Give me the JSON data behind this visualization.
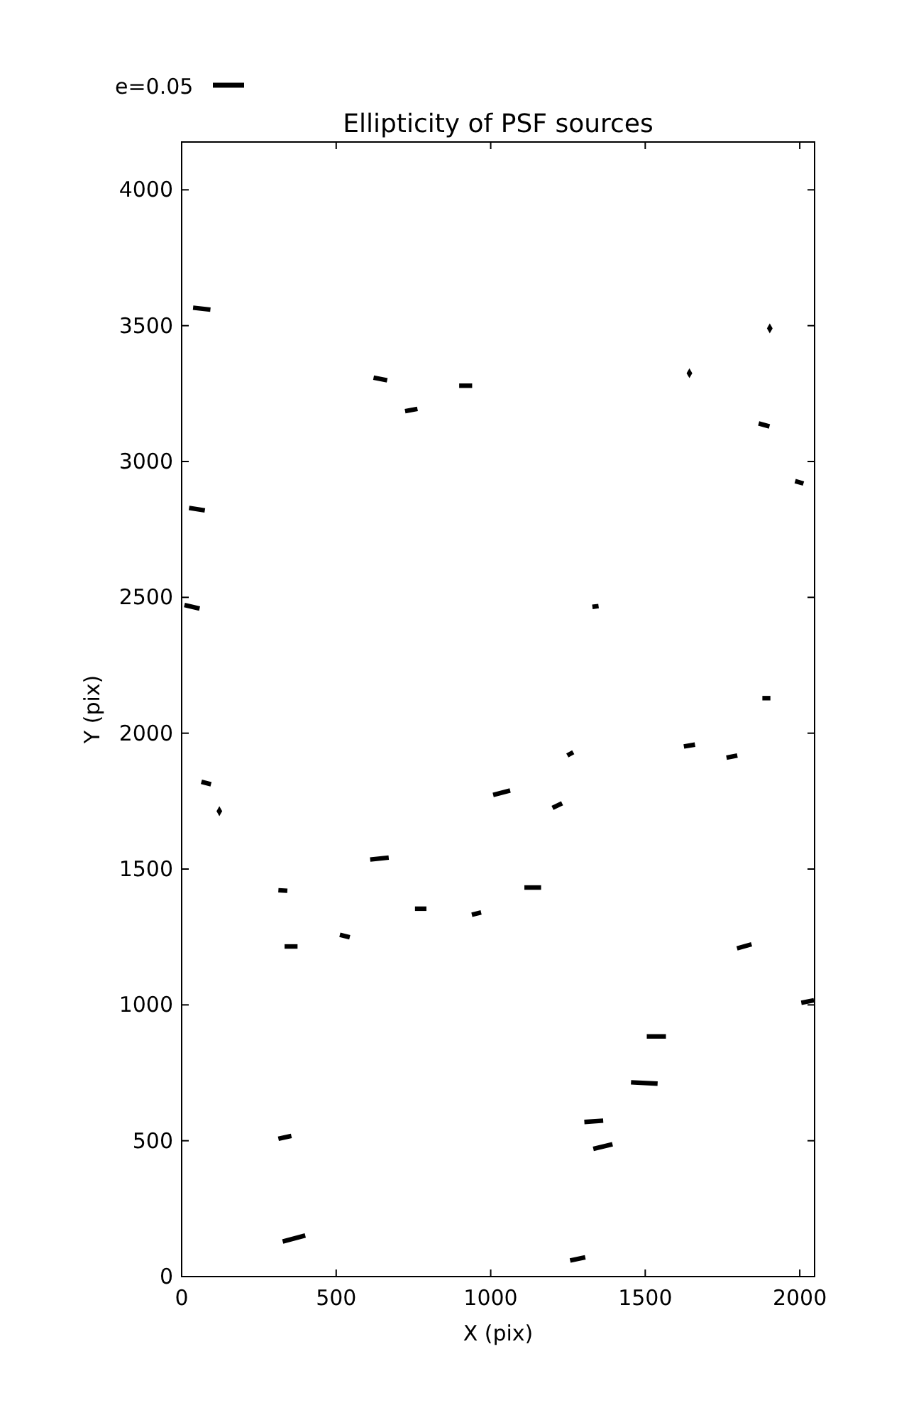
{
  "chart_data": {
    "type": "line",
    "title": "Ellipticity of PSF sources",
    "xlabel": "X (pix)",
    "ylabel": "Y (pix)",
    "xlim": [
      0,
      2048
    ],
    "ylim": [
      0,
      4176
    ],
    "xticks": [
      0,
      500,
      1000,
      1500,
      2000
    ],
    "yticks": [
      0,
      500,
      1000,
      1500,
      2000,
      2500,
      3000,
      3500,
      4000
    ],
    "grid": false,
    "line_style": "solid",
    "annotations": [
      "e=0.05"
    ],
    "series": [
      {
        "color": "#000000",
        "x": [
          37,
          93
        ],
        "values": [
          3566,
          3559
        ]
      },
      {
        "color": "#000000",
        "x": [
          621,
          665
        ],
        "values": [
          3309,
          3299
        ]
      },
      {
        "color": "#000000",
        "x": [
          898,
          940
        ],
        "values": [
          3279,
          3279
        ]
      },
      {
        "color": "#000000",
        "x": [
          723,
          763
        ],
        "values": [
          3185,
          3194
        ]
      },
      {
        "color": "#000000",
        "x": [
          1867,
          1902
        ],
        "values": [
          3140,
          3129
        ]
      },
      {
        "color": "#000000",
        "x": [
          1985,
          2012
        ],
        "values": [
          2928,
          2919
        ]
      },
      {
        "color": "#000000",
        "x": [
          24,
          75
        ],
        "values": [
          2829,
          2820
        ]
      },
      {
        "color": "#000000",
        "x": [
          9,
          58
        ],
        "values": [
          2472,
          2459
        ]
      },
      {
        "color": "#000000",
        "x": [
          1329,
          1349
        ],
        "values": [
          2465,
          2468
        ]
      },
      {
        "color": "#000000",
        "x": [
          1879,
          1905
        ],
        "values": [
          2129,
          2129
        ]
      },
      {
        "color": "#000000",
        "x": [
          1625,
          1661
        ],
        "values": [
          1951,
          1958
        ]
      },
      {
        "color": "#000000",
        "x": [
          1763,
          1798
        ],
        "values": [
          1910,
          1918
        ]
      },
      {
        "color": "#000000",
        "x": [
          1248,
          1267
        ],
        "values": [
          1918,
          1930
        ]
      },
      {
        "color": "#000000",
        "x": [
          64,
          95
        ],
        "values": [
          1821,
          1812
        ]
      },
      {
        "color": "#000000",
        "x": [
          1008,
          1063
        ],
        "values": [
          1773,
          1789
        ]
      },
      {
        "color": "#000000",
        "x": [
          1200,
          1231
        ],
        "values": [
          1725,
          1742
        ]
      },
      {
        "color": "#000000",
        "x": [
          610,
          670
        ],
        "values": [
          1535,
          1542
        ]
      },
      {
        "color": "#000000",
        "x": [
          313,
          342
        ],
        "values": [
          1422,
          1420
        ]
      },
      {
        "color": "#000000",
        "x": [
          1109,
          1163
        ],
        "values": [
          1432,
          1432
        ]
      },
      {
        "color": "#000000",
        "x": [
          755,
          792
        ],
        "values": [
          1354,
          1354
        ]
      },
      {
        "color": "#000000",
        "x": [
          939,
          969
        ],
        "values": [
          1332,
          1340
        ]
      },
      {
        "color": "#000000",
        "x": [
          333,
          375
        ],
        "values": [
          1215,
          1215
        ]
      },
      {
        "color": "#000000",
        "x": [
          512,
          544
        ],
        "values": [
          1258,
          1249
        ]
      },
      {
        "color": "#000000",
        "x": [
          1797,
          1844
        ],
        "values": [
          1208,
          1223
        ]
      },
      {
        "color": "#000000",
        "x": [
          2005,
          2046
        ],
        "values": [
          1008,
          1017
        ]
      },
      {
        "color": "#000000",
        "x": [
          1505,
          1567
        ],
        "values": [
          884,
          884
        ]
      },
      {
        "color": "#000000",
        "x": [
          1454,
          1540
        ],
        "values": [
          715,
          710
        ]
      },
      {
        "color": "#000000",
        "x": [
          1303,
          1364
        ],
        "values": [
          569,
          574
        ]
      },
      {
        "color": "#000000",
        "x": [
          1332,
          1394
        ],
        "values": [
          470,
          487
        ]
      },
      {
        "color": "#000000",
        "x": [
          313,
          355
        ],
        "values": [
          507,
          518
        ]
      },
      {
        "color": "#000000",
        "x": [
          327,
          400
        ],
        "values": [
          129,
          151
        ]
      },
      {
        "color": "#000000",
        "x": [
          1257,
          1306
        ],
        "values": [
          59,
          71
        ]
      },
      {
        "type": "scatter",
        "marker": "diamond",
        "color": "#000000",
        "x": [
          1903,
          1643,
          122
        ],
        "values": [
          3490,
          3325,
          1713
        ]
      }
    ]
  }
}
